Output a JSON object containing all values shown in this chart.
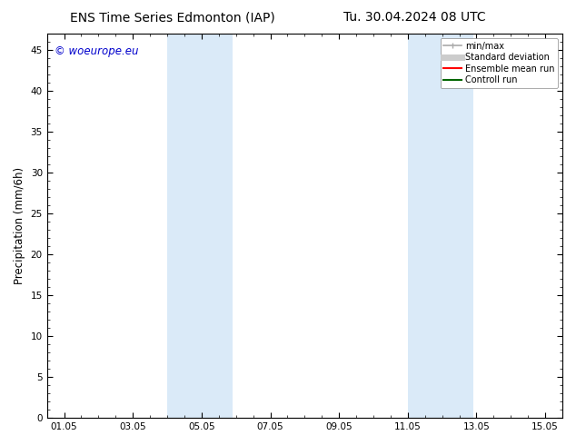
{
  "title_left": "ENS Time Series Edmonton (IAP)",
  "title_right": "Tu. 30.04.2024 08 UTC",
  "ylabel": "Precipitation (mm/6h)",
  "watermark": "© woeurope.eu",
  "watermark_color": "#0000cc",
  "background_color": "#ffffff",
  "plot_bg_color": "#ffffff",
  "shaded_bands": [
    {
      "x_start": 4.0,
      "x_end": 5.9,
      "color": "#daeaf8"
    },
    {
      "x_start": 11.0,
      "x_end": 12.9,
      "color": "#daeaf8"
    }
  ],
  "ylim": [
    0,
    47
  ],
  "yticks": [
    0,
    5,
    10,
    15,
    20,
    25,
    30,
    35,
    40,
    45
  ],
  "xlim_start": 0.5,
  "xlim_end": 15.5,
  "xticks": [
    1,
    3,
    5,
    7,
    9,
    11,
    13,
    15
  ],
  "xtick_labels": [
    "01.05",
    "03.05",
    "05.05",
    "07.05",
    "09.05",
    "11.05",
    "13.05",
    "15.05"
  ],
  "legend_items": [
    {
      "label": "min/max",
      "color": "#aaaaaa",
      "lw": 1.2,
      "style": "minmax"
    },
    {
      "label": "Standard deviation",
      "color": "#cccccc",
      "lw": 5,
      "style": "fill"
    },
    {
      "label": "Ensemble mean run",
      "color": "#ff0000",
      "lw": 1.5,
      "style": "line"
    },
    {
      "label": "Controll run",
      "color": "#006600",
      "lw": 1.5,
      "style": "line"
    }
  ],
  "title_fontsize": 10,
  "axis_fontsize": 8.5,
  "tick_fontsize": 7.5,
  "watermark_fontsize": 8.5
}
